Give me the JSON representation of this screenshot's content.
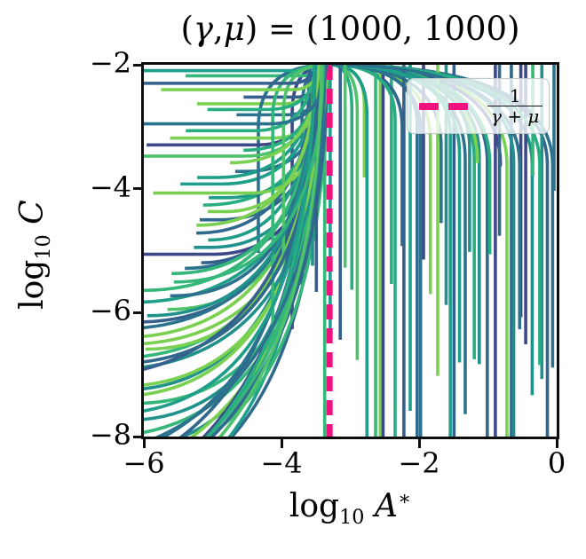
{
  "title": {
    "open": "(",
    "gamma": "γ",
    "comma": ", ",
    "mu": "μ",
    "rest": ") = (1000, 1000)"
  },
  "axes": {
    "xlabel": {
      "log": "log",
      "sub": "10",
      "var": "A",
      "sup": "∗"
    },
    "ylabel": {
      "log": "log",
      "sub": "10",
      "var": "C"
    }
  },
  "legend": {
    "label_numerator": "1",
    "label_denominator": "γ + μ"
  },
  "chart_data": {
    "type": "line",
    "title_text": "(γ, μ) = (1000, 1000)",
    "xlabel_text": "log10 A*",
    "ylabel_text": "log10 C",
    "xlim": [
      -6,
      0
    ],
    "ylim": [
      -8,
      -2
    ],
    "x_ticks": [
      {
        "value": -6,
        "label": "−6"
      },
      {
        "value": -4,
        "label": "−4"
      },
      {
        "value": -2,
        "label": "−2"
      },
      {
        "value": 0,
        "label": "0"
      }
    ],
    "y_ticks": [
      {
        "value": -2,
        "label": "−2"
      },
      {
        "value": -4,
        "label": "−4"
      },
      {
        "value": -6,
        "label": "−6"
      },
      {
        "value": -8,
        "label": "−8"
      }
    ],
    "grid": false,
    "legend_position": "upper right",
    "vline": {
      "x": -3.301,
      "meaning": "log10(1/(gamma+mu)) for gamma=1000, mu=1000",
      "color": "#f0137f",
      "dash": [
        17,
        10
      ],
      "width": 7,
      "legend_label": "1/(γ+μ)"
    },
    "trajectories": {
      "description": "streamlines converging to the attractor A*=1/(γ+μ) and rising to C=10^-2",
      "seed": 7,
      "line_width": 3.6,
      "palette": [
        "#3e4989",
        "#355f8d",
        "#31688e",
        "#2c728e",
        "#21918c",
        "#1f9e89",
        "#27ad81",
        "#35b779",
        "#4ec36b",
        "#7ad151"
      ],
      "overlay_fraction": 0.15,
      "left_family": {
        "count": 52,
        "y_range": [
          -2.06,
          -7.72
        ],
        "y_jitter": 0.07,
        "x_start_range": [
          -6.35,
          -4.3
        ],
        "y_end": -1.9,
        "lane_offset": [
          0.03,
          0.24
        ],
        "sweep": {
          "base": 0.22,
          "per_unit": 0.55,
          "jitter": 0.4
        }
      },
      "below_family": {
        "count": 14,
        "y_range": [
          -8.15,
          -9.7
        ],
        "y_jitter": 0.3,
        "x_start_range": [
          -6.35,
          -5.5
        ],
        "y_end": -1.9,
        "lane_offset": [
          0.02,
          0.3
        ],
        "sweep": {
          "base": 0.25,
          "per_unit": 0.55,
          "jitter": 0.5
        }
      },
      "right_family": {
        "count": 56,
        "x_range": [
          -4.35,
          -0.03
        ],
        "x_jitter": 0.07,
        "skew": 0.72,
        "y_top": -2.0,
        "straight_fraction": 0.4,
        "full_depth_fraction": 0.3,
        "full_depth_y": -8.25,
        "shallow_range": [
          -3.1,
          -7.9
        ],
        "bend": {
          "base": 0.3,
          "per_unit": 0.45,
          "jitter": 0.35,
          "max": 1.6
        }
      }
    }
  }
}
